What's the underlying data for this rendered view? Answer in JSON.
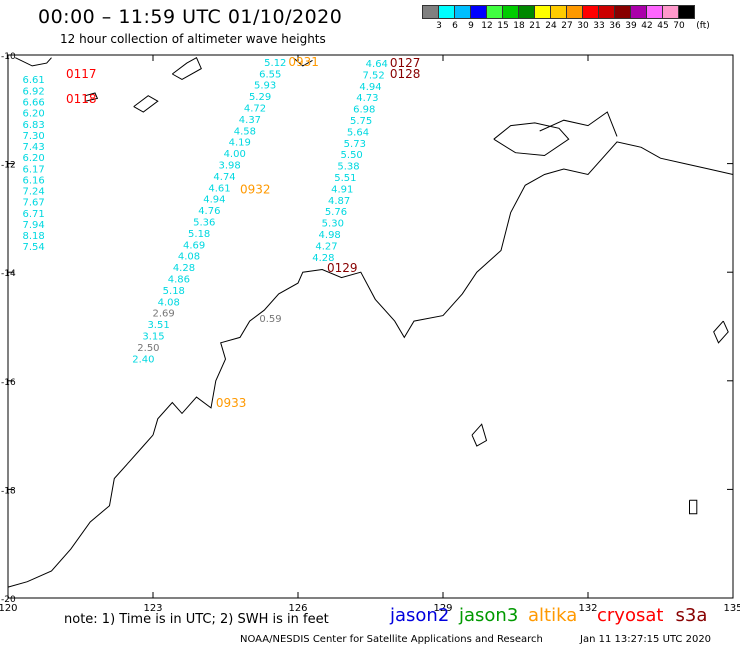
{
  "header": {
    "title": "00:00 – 11:59 UTC 01/10/2020",
    "subtitle": "12 hour collection of altimeter wave heights"
  },
  "colorbar": {
    "colors": [
      "#808080",
      "#00ffff",
      "#00bfff",
      "#0000ff",
      "#40ff40",
      "#00cc00",
      "#008800",
      "#ffff00",
      "#ffcc00",
      "#ff9900",
      "#ff0000",
      "#cc0000",
      "#880000",
      "#aa00aa",
      "#ff66ff",
      "#ff99cc",
      "#000000"
    ],
    "labels": [
      "3",
      "6",
      "9",
      "12",
      "15",
      "18",
      "21",
      "24",
      "27",
      "30",
      "33",
      "36",
      "39",
      "42",
      "45",
      "70",
      "(ft)"
    ]
  },
  "axes": {
    "x_ticks": [
      120,
      123,
      126,
      129,
      132,
      135
    ],
    "y_ticks": [
      -10,
      -12,
      -14,
      -16,
      -18,
      -20
    ],
    "x_range": [
      120,
      135
    ],
    "y_range": [
      -20,
      -10
    ]
  },
  "tracks": [
    {
      "satellite": "cryosat",
      "color": "#ff0000",
      "label_pos": [
        121.2,
        -10.42
      ],
      "time": "0117",
      "heights": [
        "6.61",
        "6.92",
        "6.66",
        "6.20",
        "6.83",
        "7.30",
        "7.43",
        "6.20",
        "6.17",
        "6.16",
        "7.24",
        "7.67",
        "6.71",
        "7.94",
        "8.18",
        "7.54"
      ]
    },
    {
      "satellite": "cryosat",
      "color": "#ff0000",
      "label_pos": [
        121.2,
        -10.88
      ],
      "time": "0118",
      "heights": []
    },
    {
      "satellite": "altika",
      "color": "#ff9900",
      "label_pos": [
        125.8,
        -10.2
      ],
      "time": "0931",
      "heights": [
        "5.12",
        "6.55",
        "5.93",
        "5.29",
        "4.72",
        "4.37",
        "4.58",
        "4.19",
        "4.00",
        "3.98",
        "4.74",
        "4.61",
        "4.94",
        "4.76",
        "5.36",
        "5.18",
        "4.69",
        "4.08",
        "4.28",
        "4.86",
        "5.18",
        "4.08",
        "2.69",
        "3.51",
        "3.15",
        "2.50",
        "2.40"
      ]
    },
    {
      "satellite": "altika",
      "color": "#ff9900",
      "label_pos": [
        124.8,
        -12.55
      ],
      "time": "0932",
      "heights": []
    },
    {
      "satellite": "altika",
      "color": "#ff9900",
      "label_pos": [
        124.3,
        -16.48
      ],
      "time": "0933",
      "heights": []
    },
    {
      "satellite": "s3a",
      "color": "#880000",
      "label_pos": [
        127.9,
        -10.22
      ],
      "time": "0127",
      "heights": [
        "4.64",
        "7.52",
        "4.94",
        "4.73",
        "6.98",
        "5.75",
        "5.64",
        "5.73",
        "5.50",
        "5.38",
        "5.51",
        "4.91",
        "4.87",
        "5.76",
        "5.30",
        "4.98",
        "4.27",
        "4.28"
      ]
    },
    {
      "satellite": "s3a",
      "color": "#880000",
      "label_pos": [
        127.9,
        -10.42
      ],
      "time": "0128",
      "heights": []
    },
    {
      "satellite": "s3a",
      "color": "#880000",
      "label_pos": [
        126.6,
        -14.0
      ],
      "time": "0129",
      "heights": []
    },
    {
      "satellite": "grey",
      "color": "#777777",
      "label_pos": [
        125.2,
        -14.92
      ],
      "time": "",
      "heights": [
        "0.59"
      ]
    }
  ],
  "note": "note:  1) Time is in UTC;  2) SWH is in feet",
  "legend": [
    {
      "name": "jason2",
      "color": "#0000dd"
    },
    {
      "name": "jason3",
      "color": "#009900"
    },
    {
      "name": "altika",
      "color": "#ff9900"
    },
    {
      "name": "cryosat",
      "color": "#ff0000"
    },
    {
      "name": "s3a",
      "color": "#880000"
    }
  ],
  "credit": "NOAA/NESDIS Center for Satellite Applications and Research",
  "timestamp": "Jan 11 13:27:15 UTC 2020"
}
